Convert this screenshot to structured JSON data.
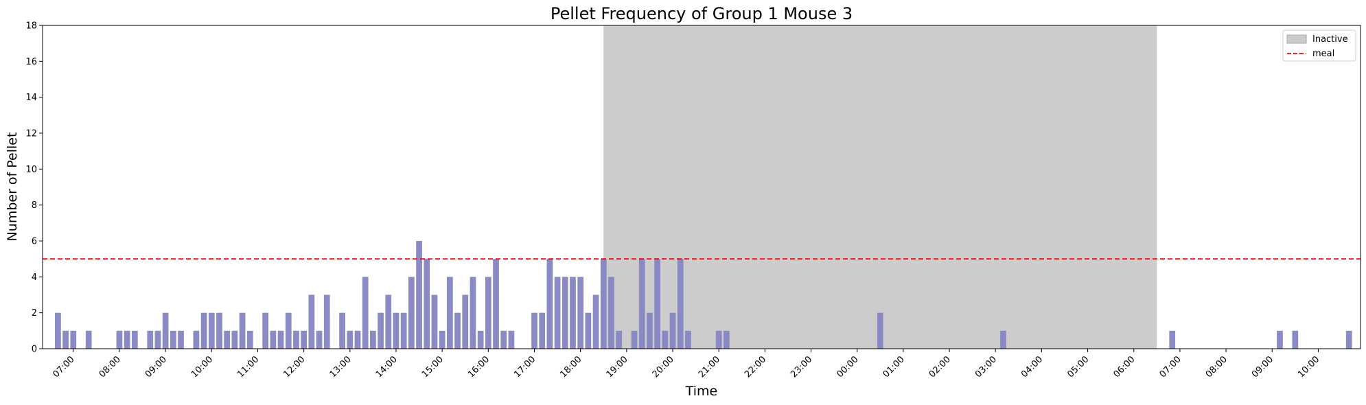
{
  "chart_data": {
    "type": "bar",
    "title": "Pellet Frequency of Group 1 Mouse 3",
    "xlabel": "Time",
    "ylabel": "Number of Pellet",
    "ylim": [
      0,
      18
    ],
    "yticks": [
      0,
      2,
      4,
      6,
      8,
      10,
      12,
      14,
      16,
      18
    ],
    "xlim": [
      "06:20",
      "10:55 (+1 day)"
    ],
    "x_unit": "clock time, bars every 10 minutes",
    "x_ticks": [
      "07:00",
      "08:00",
      "09:00",
      "10:00",
      "11:00",
      "12:00",
      "13:00",
      "14:00",
      "15:00",
      "16:00",
      "17:00",
      "18:00",
      "19:00",
      "20:00",
      "21:00",
      "22:00",
      "23:00",
      "00:00",
      "01:00",
      "02:00",
      "03:00",
      "04:00",
      "05:00",
      "06:00",
      "07:00",
      "08:00",
      "09:00",
      "10:00"
    ],
    "bar_color": "#8888c4",
    "inactive_period": {
      "start": "18:30",
      "end": "06:30 (+1 day)",
      "color": "#bbbbbb",
      "label": "Inactive"
    },
    "meal_threshold": {
      "value": 5,
      "color": "#ff0000",
      "style": "dashed",
      "label": "meal"
    },
    "legend": {
      "placement": "top-right",
      "entries": [
        "Inactive",
        "meal"
      ]
    },
    "grid": false,
    "bars": [
      {
        "t": "06:40",
        "v": 2
      },
      {
        "t": "06:50",
        "v": 1
      },
      {
        "t": "07:00",
        "v": 1
      },
      {
        "t": "07:10",
        "v": 0
      },
      {
        "t": "07:20",
        "v": 1
      },
      {
        "t": "07:30",
        "v": 0
      },
      {
        "t": "07:40",
        "v": 0
      },
      {
        "t": "07:50",
        "v": 0
      },
      {
        "t": "08:00",
        "v": 1
      },
      {
        "t": "08:10",
        "v": 1
      },
      {
        "t": "08:20",
        "v": 1
      },
      {
        "t": "08:30",
        "v": 0
      },
      {
        "t": "08:40",
        "v": 1
      },
      {
        "t": "08:50",
        "v": 1
      },
      {
        "t": "09:00",
        "v": 2
      },
      {
        "t": "09:10",
        "v": 1
      },
      {
        "t": "09:20",
        "v": 1
      },
      {
        "t": "09:30",
        "v": 0
      },
      {
        "t": "09:40",
        "v": 1
      },
      {
        "t": "09:50",
        "v": 2
      },
      {
        "t": "10:00",
        "v": 2
      },
      {
        "t": "10:10",
        "v": 2
      },
      {
        "t": "10:20",
        "v": 1
      },
      {
        "t": "10:30",
        "v": 1
      },
      {
        "t": "10:40",
        "v": 2
      },
      {
        "t": "10:50",
        "v": 1
      },
      {
        "t": "11:00",
        "v": 0
      },
      {
        "t": "11:10",
        "v": 2
      },
      {
        "t": "11:20",
        "v": 1
      },
      {
        "t": "11:30",
        "v": 1
      },
      {
        "t": "11:40",
        "v": 2
      },
      {
        "t": "11:50",
        "v": 1
      },
      {
        "t": "12:00",
        "v": 1
      },
      {
        "t": "12:10",
        "v": 3
      },
      {
        "t": "12:20",
        "v": 1
      },
      {
        "t": "12:30",
        "v": 3
      },
      {
        "t": "12:40",
        "v": 0
      },
      {
        "t": "12:50",
        "v": 2
      },
      {
        "t": "13:00",
        "v": 1
      },
      {
        "t": "13:10",
        "v": 1
      },
      {
        "t": "13:20",
        "v": 4
      },
      {
        "t": "13:30",
        "v": 1
      },
      {
        "t": "13:40",
        "v": 2
      },
      {
        "t": "13:50",
        "v": 3
      },
      {
        "t": "14:00",
        "v": 2
      },
      {
        "t": "14:10",
        "v": 2
      },
      {
        "t": "14:20",
        "v": 4
      },
      {
        "t": "14:30",
        "v": 6
      },
      {
        "t": "14:40",
        "v": 5
      },
      {
        "t": "14:50",
        "v": 3
      },
      {
        "t": "15:00",
        "v": 1
      },
      {
        "t": "15:10",
        "v": 4
      },
      {
        "t": "15:20",
        "v": 2
      },
      {
        "t": "15:30",
        "v": 3
      },
      {
        "t": "15:40",
        "v": 4
      },
      {
        "t": "15:50",
        "v": 1
      },
      {
        "t": "16:00",
        "v": 4
      },
      {
        "t": "16:10",
        "v": 5
      },
      {
        "t": "16:20",
        "v": 1
      },
      {
        "t": "16:30",
        "v": 1
      },
      {
        "t": "16:40",
        "v": 0
      },
      {
        "t": "16:50",
        "v": 0
      },
      {
        "t": "17:00",
        "v": 2
      },
      {
        "t": "17:10",
        "v": 2
      },
      {
        "t": "17:20",
        "v": 5
      },
      {
        "t": "17:30",
        "v": 4
      },
      {
        "t": "17:40",
        "v": 4
      },
      {
        "t": "17:50",
        "v": 4
      },
      {
        "t": "18:00",
        "v": 4
      },
      {
        "t": "18:10",
        "v": 2
      },
      {
        "t": "18:20",
        "v": 3
      },
      {
        "t": "18:30",
        "v": 5
      },
      {
        "t": "18:40",
        "v": 4
      },
      {
        "t": "18:50",
        "v": 1
      },
      {
        "t": "19:00",
        "v": 0
      },
      {
        "t": "19:10",
        "v": 1
      },
      {
        "t": "19:20",
        "v": 5
      },
      {
        "t": "19:30",
        "v": 2
      },
      {
        "t": "19:40",
        "v": 5
      },
      {
        "t": "19:50",
        "v": 1
      },
      {
        "t": "20:00",
        "v": 2
      },
      {
        "t": "20:10",
        "v": 5
      },
      {
        "t": "20:20",
        "v": 1
      },
      {
        "t": "20:30",
        "v": 0
      },
      {
        "t": "20:40",
        "v": 0
      },
      {
        "t": "20:50",
        "v": 0
      },
      {
        "t": "21:00",
        "v": 1
      },
      {
        "t": "21:10",
        "v": 1
      },
      {
        "t": "00:30 (+1 day)",
        "v": 2
      },
      {
        "t": "03:10 (+1 day)",
        "v": 1
      },
      {
        "t": "06:50 (+1 day)",
        "v": 1
      },
      {
        "t": "09:10 (+1 day)",
        "v": 1
      },
      {
        "t": "09:30 (+1 day)",
        "v": 1
      },
      {
        "t": "10:40 (+1 day)",
        "v": 1
      }
    ]
  }
}
